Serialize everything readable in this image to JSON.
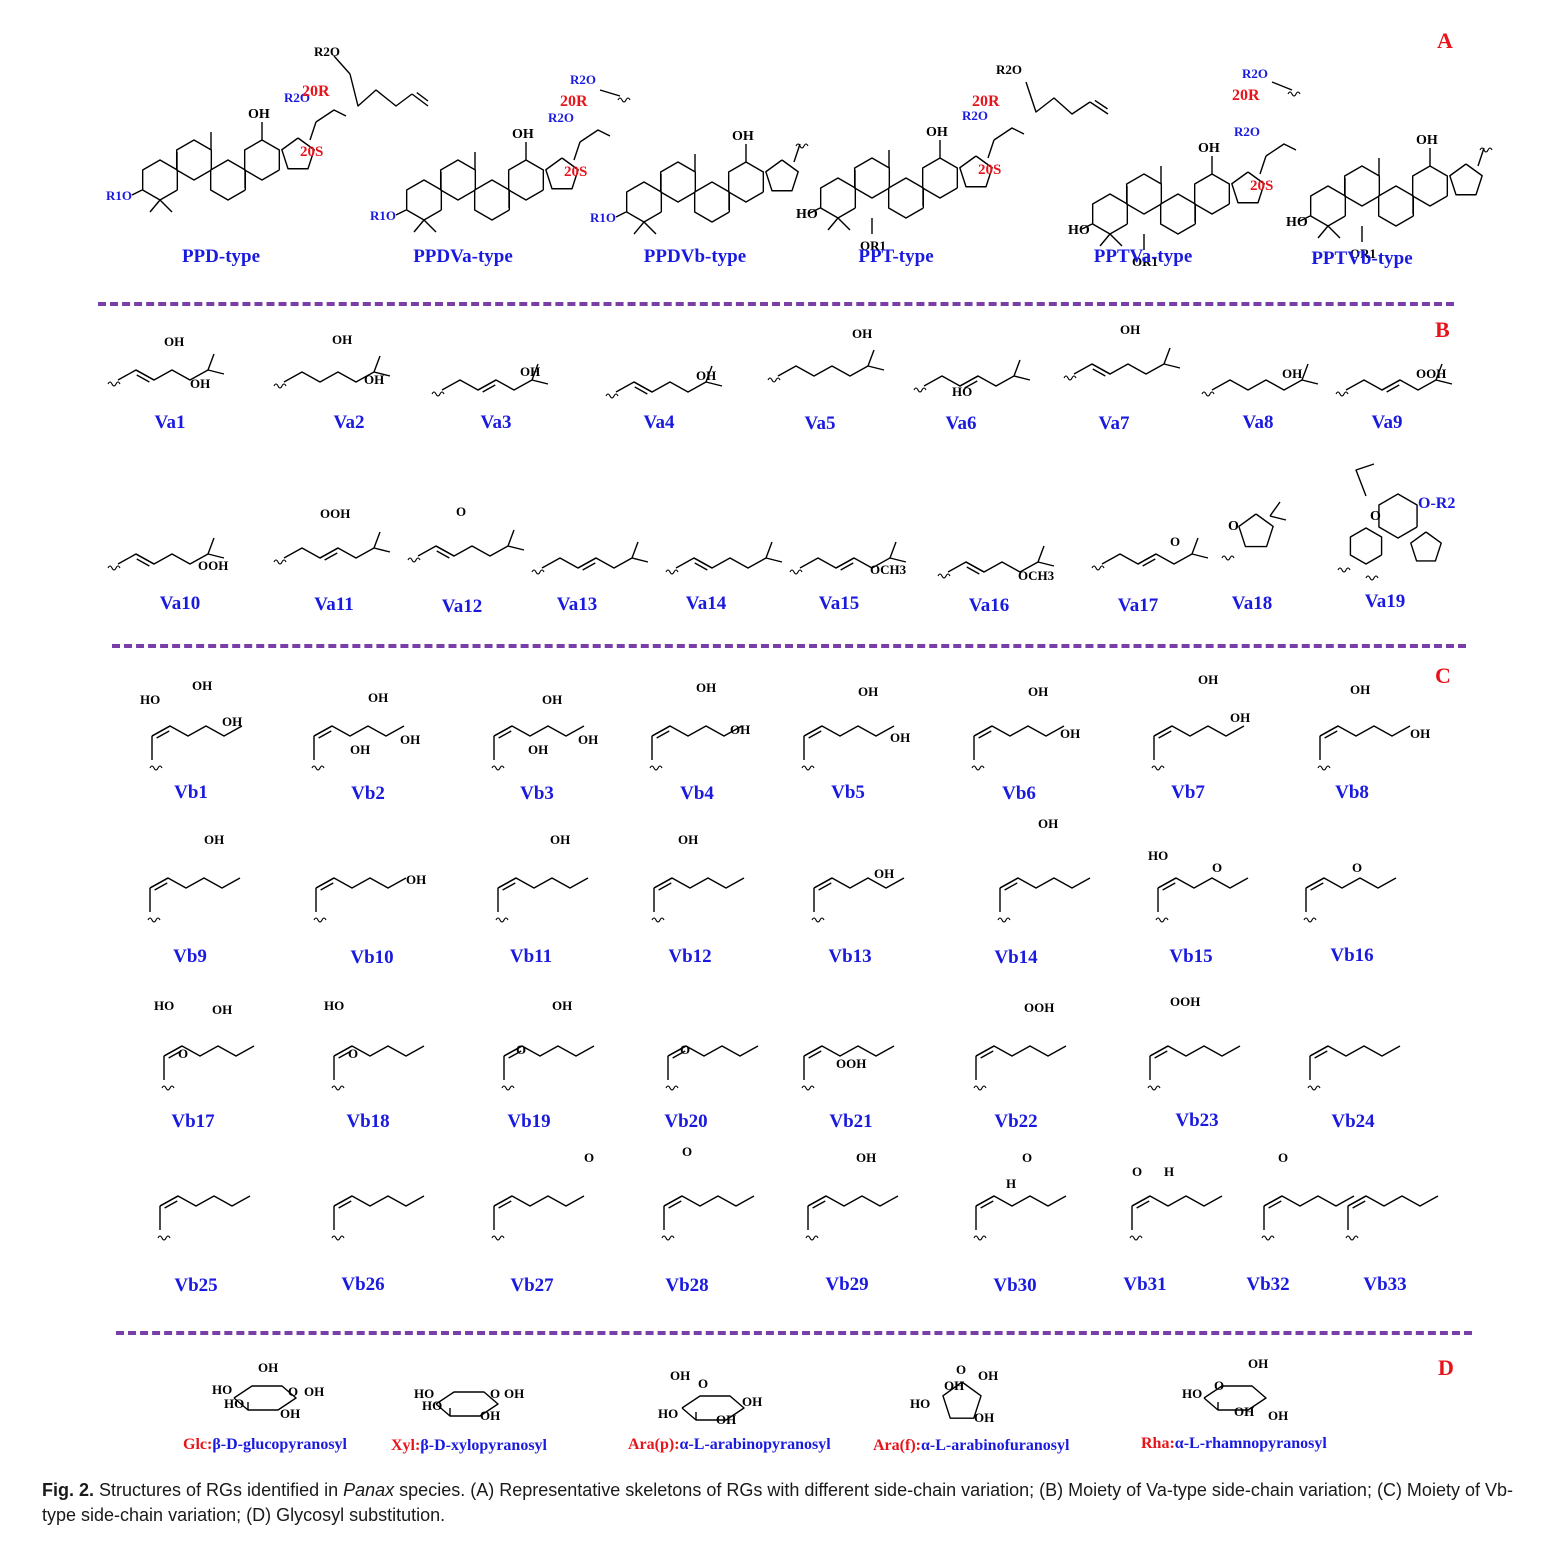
{
  "sections": {
    "a": "A",
    "b": "B",
    "c": "C",
    "d": "D"
  },
  "skeleton_types": [
    "PPD-type",
    "PPDVa-type",
    "PPDVb-type",
    "PPT-type",
    "PPTVa-type",
    "PPTVb-type"
  ],
  "skeleton_annotations": {
    "oh": "OH",
    "r1o": "R1O",
    "r2o": "R2O",
    "or1": "OR1",
    "ho": "HO",
    "c20r": "20R",
    "c20s": "20S"
  },
  "va_labels": [
    "Va1",
    "Va2",
    "Va3",
    "Va4",
    "Va5",
    "Va6",
    "Va7",
    "Va8",
    "Va9",
    "Va10",
    "Va11",
    "Va12",
    "Va13",
    "Va14",
    "Va15",
    "Va16",
    "Va17",
    "Va18",
    "Va19"
  ],
  "vb_labels": [
    "Vb1",
    "Vb2",
    "Vb3",
    "Vb4",
    "Vb5",
    "Vb6",
    "Vb7",
    "Vb8",
    "Vb9",
    "Vb10",
    "Vb11",
    "Vb12",
    "Vb13",
    "Vb14",
    "Vb15",
    "Vb16",
    "Vb17",
    "Vb18",
    "Vb19",
    "Vb20",
    "Vb21",
    "Vb22",
    "Vb23",
    "Vb24",
    "Vb25",
    "Vb26",
    "Vb27",
    "Vb28",
    "Vb29",
    "Vb30",
    "Vb31",
    "Vb32",
    "Vb33"
  ],
  "atom_labels": {
    "oh": "OH",
    "ho": "HO",
    "ooh": "OOH",
    "och3": "OCH3",
    "o": "O",
    "h": "H",
    "o_r2": "O-R2"
  },
  "glycosyls": [
    {
      "abbr": "Glc:",
      "full": "β-D-glucopyranosyl"
    },
    {
      "abbr": "Xyl:",
      "full": "β-D-xylopyranosyl"
    },
    {
      "abbr": "Ara(p):",
      "full": "α-L-arabinopyranosyl"
    },
    {
      "abbr": "Ara(f):",
      "full": "α-L-arabinofuranosyl"
    },
    {
      "abbr": "Rha:",
      "full": "α-L-rhamnopyranosyl"
    }
  ],
  "caption": {
    "fig": "Fig. 2.",
    "text_before": " Structures of RGs identified in ",
    "genus": "Panax",
    "text_after": " species. (A) Representative skeletons of RGs with different side-chain variation; (B) Moiety of Va-type side-chain variation; (C) Moiety of Vb-type side-chain variation; (D) Glycosyl substitution."
  },
  "colors": {
    "label_blue": "#1a1adf",
    "letter_red": "#e8141b",
    "divider_purple": "#7a3ea8"
  }
}
